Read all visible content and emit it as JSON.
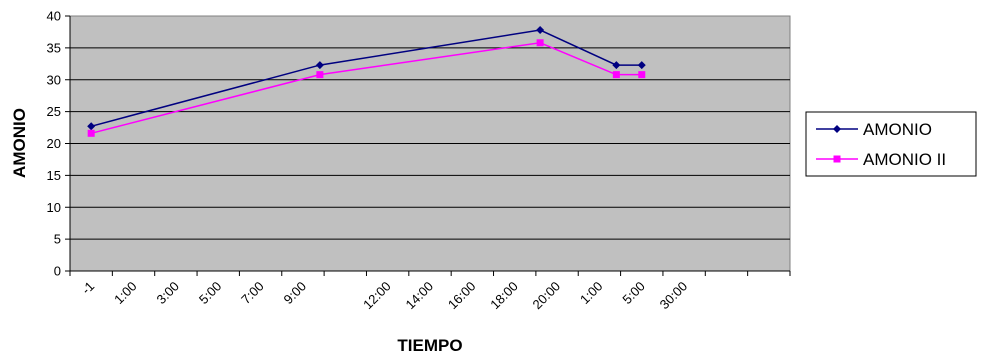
{
  "chart_data": {
    "type": "line",
    "title": "",
    "xlabel": "TIEMPO",
    "ylabel": "AMONIO",
    "ylim": [
      0,
      40
    ],
    "yticks": [
      0,
      5,
      10,
      15,
      20,
      25,
      30,
      35,
      40
    ],
    "grid": "horizontal",
    "plot_background": "#c0c0c0",
    "legend_position": "right",
    "categories": [
      "-1",
      "1:00",
      "3:00",
      "5:00",
      "7:00",
      "9:00",
      "",
      "12:00",
      "14:00",
      "16:00",
      "18:00",
      "20:00",
      "1:00",
      "5:00",
      "30:00",
      "",
      ""
    ],
    "series": [
      {
        "name": "AMONIO",
        "color": "#000080",
        "marker": "diamond",
        "points": [
          {
            "x": 0.5,
            "y": 22.7
          },
          {
            "x": 5.9,
            "y": 32.3
          },
          {
            "x": 11.1,
            "y": 37.8
          },
          {
            "x": 12.9,
            "y": 32.3
          },
          {
            "x": 13.5,
            "y": 32.3
          }
        ]
      },
      {
        "name": "AMONIO II",
        "color": "#ff00ff",
        "marker": "square",
        "points": [
          {
            "x": 0.5,
            "y": 21.6
          },
          {
            "x": 5.9,
            "y": 30.8
          },
          {
            "x": 11.1,
            "y": 35.8
          },
          {
            "x": 12.9,
            "y": 30.8
          },
          {
            "x": 13.5,
            "y": 30.8
          }
        ]
      }
    ]
  }
}
